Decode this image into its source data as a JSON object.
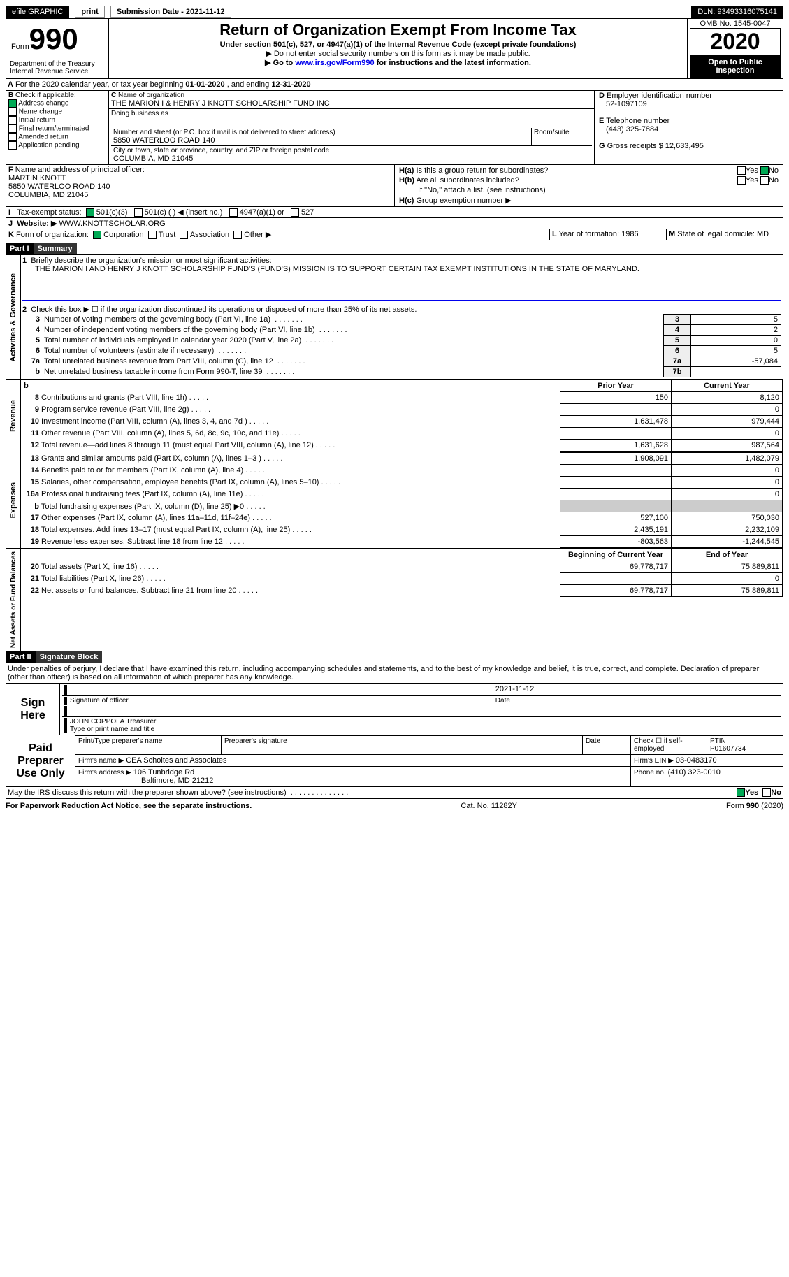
{
  "topbar": {
    "efile": "efile GRAPHIC",
    "print": "print",
    "subdate_label": "Submission Date - ",
    "subdate": "2021-11-12",
    "dln_label": "DLN: ",
    "dln": "93493316075141"
  },
  "header": {
    "form_label": "Form",
    "form_num": "990",
    "title": "Return of Organization Exempt From Income Tax",
    "subtitle": "Under section 501(c), 527, or 4947(a)(1) of the Internal Revenue Code (except private foundations)",
    "note1": "▶ Do not enter social security numbers on this form as it may be made public.",
    "note2_pre": "▶ Go to ",
    "note2_link": "www.irs.gov/Form990",
    "note2_post": " for instructions and the latest information.",
    "dept": "Department of the Treasury\nInternal Revenue Service",
    "omb_label": "OMB No. 1545-0047",
    "year": "2020",
    "open": "Open to Public Inspection"
  },
  "A": {
    "text": "For the 2020 calendar year, or tax year beginning ",
    "begin": "01-01-2020",
    "mid": " , and ending ",
    "end": "12-31-2020"
  },
  "B": {
    "label": "Check if applicable:",
    "items": [
      "Address change",
      "Name change",
      "Initial return",
      "Final return/terminated",
      "Amended return",
      "Application pending"
    ],
    "checked_idx": 0
  },
  "C": {
    "name_label": "Name of organization",
    "name": "THE MARION I & HENRY J KNOTT SCHOLARSHIP FUND INC",
    "dba_label": "Doing business as",
    "addr_label": "Number and street (or P.O. box if mail is not delivered to street address)",
    "addr": "5850 WATERLOO ROAD 140",
    "room_label": "Room/suite",
    "city_label": "City or town, state or province, country, and ZIP or foreign postal code",
    "city": "COLUMBIA, MD  21045"
  },
  "D": {
    "label": "Employer identification number",
    "val": "52-1097109"
  },
  "E": {
    "label": "Telephone number",
    "val": "(443) 325-7884"
  },
  "G": {
    "label": "Gross receipts $",
    "val": "12,633,495"
  },
  "F": {
    "label": "Name and address of principal officer:",
    "name": "MARTIN KNOTT",
    "addr1": "5850 WATERLOO ROAD 140",
    "addr2": "COLUMBIA, MD  21045"
  },
  "H": {
    "a_label": "Is this a group return for subordinates?",
    "a_yes": "Yes",
    "a_no": "No",
    "b_label": "Are all subordinates included?",
    "b_note": "If \"No,\" attach a list. (see instructions)",
    "c_label": "Group exemption number ▶"
  },
  "I": {
    "label": "Tax-exempt status:",
    "opts": [
      "501(c)(3)",
      "501(c) (   ) ◀ (insert no.)",
      "4947(a)(1) or",
      "527"
    ]
  },
  "J": {
    "label": "Website: ▶",
    "val": "WWW.KNOTTSCHOLAR.ORG"
  },
  "K": {
    "label": "Form of organization:",
    "opts": [
      "Corporation",
      "Trust",
      "Association",
      "Other ▶"
    ]
  },
  "L": {
    "label": "Year of formation:",
    "val": "1986"
  },
  "M": {
    "label": "State of legal domicile:",
    "val": "MD"
  },
  "part1": {
    "header": "Part I",
    "title": "Summary",
    "side_gov": "Activities & Governance",
    "side_rev": "Revenue",
    "side_exp": "Expenses",
    "side_net": "Net Assets or Fund Balances",
    "l1_label": "Briefly describe the organization's mission or most significant activities:",
    "l1_text": "THE MARION I AND HENRY J KNOTT SCHOLARSHIP FUND'S (FUND'S) MISSION IS TO SUPPORT CERTAIN TAX EXEMPT INSTITUTIONS IN THE STATE OF MARYLAND.",
    "l2": "Check this box ▶ ☐ if the organization discontinued its operations or disposed of more than 25% of its net assets.",
    "rows_gov": [
      {
        "n": "3",
        "t": "Number of voting members of the governing body (Part VI, line 1a)",
        "box": "3",
        "v": "5"
      },
      {
        "n": "4",
        "t": "Number of independent voting members of the governing body (Part VI, line 1b)",
        "box": "4",
        "v": "2"
      },
      {
        "n": "5",
        "t": "Total number of individuals employed in calendar year 2020 (Part V, line 2a)",
        "box": "5",
        "v": "0"
      },
      {
        "n": "6",
        "t": "Total number of volunteers (estimate if necessary)",
        "box": "6",
        "v": "5"
      },
      {
        "n": "7a",
        "t": "Total unrelated business revenue from Part VIII, column (C), line 12",
        "box": "7a",
        "v": "-57,084"
      },
      {
        "n": "b",
        "t": "Net unrelated business taxable income from Form 990-T, line 39",
        "box": "7b",
        "v": ""
      }
    ],
    "col_prior": "Prior Year",
    "col_curr": "Current Year",
    "rows_rev": [
      {
        "n": "8",
        "t": "Contributions and grants (Part VIII, line 1h)",
        "p": "150",
        "c": "8,120"
      },
      {
        "n": "9",
        "t": "Program service revenue (Part VIII, line 2g)",
        "p": "",
        "c": "0"
      },
      {
        "n": "10",
        "t": "Investment income (Part VIII, column (A), lines 3, 4, and 7d )",
        "p": "1,631,478",
        "c": "979,444"
      },
      {
        "n": "11",
        "t": "Other revenue (Part VIII, column (A), lines 5, 6d, 8c, 9c, 10c, and 11e)",
        "p": "",
        "c": "0"
      },
      {
        "n": "12",
        "t": "Total revenue—add lines 8 through 11 (must equal Part VIII, column (A), line 12)",
        "p": "1,631,628",
        "c": "987,564"
      }
    ],
    "rows_exp": [
      {
        "n": "13",
        "t": "Grants and similar amounts paid (Part IX, column (A), lines 1–3 )",
        "p": "1,908,091",
        "c": "1,482,079"
      },
      {
        "n": "14",
        "t": "Benefits paid to or for members (Part IX, column (A), line 4)",
        "p": "",
        "c": "0"
      },
      {
        "n": "15",
        "t": "Salaries, other compensation, employee benefits (Part IX, column (A), lines 5–10)",
        "p": "",
        "c": "0"
      },
      {
        "n": "16a",
        "t": "Professional fundraising fees (Part IX, column (A), line 11e)",
        "p": "",
        "c": "0"
      },
      {
        "n": "b",
        "t": "Total fundraising expenses (Part IX, column (D), line 25) ▶0",
        "p": "GREY",
        "c": "GREY"
      },
      {
        "n": "17",
        "t": "Other expenses (Part IX, column (A), lines 11a–11d, 11f–24e)",
        "p": "527,100",
        "c": "750,030"
      },
      {
        "n": "18",
        "t": "Total expenses. Add lines 13–17 (must equal Part IX, column (A), line 25)",
        "p": "2,435,191",
        "c": "2,232,109"
      },
      {
        "n": "19",
        "t": "Revenue less expenses. Subtract line 18 from line 12",
        "p": "-803,563",
        "c": "-1,244,545"
      }
    ],
    "col_begin": "Beginning of Current Year",
    "col_end": "End of Year",
    "rows_net": [
      {
        "n": "20",
        "t": "Total assets (Part X, line 16)",
        "p": "69,778,717",
        "c": "75,889,811"
      },
      {
        "n": "21",
        "t": "Total liabilities (Part X, line 26)",
        "p": "",
        "c": "0"
      },
      {
        "n": "22",
        "t": "Net assets or fund balances. Subtract line 21 from line 20",
        "p": "69,778,717",
        "c": "75,889,811"
      }
    ]
  },
  "part2": {
    "header": "Part II",
    "title": "Signature Block",
    "decl": "Under penalties of perjury, I declare that I have examined this return, including accompanying schedules and statements, and to the best of my knowledge and belief, it is true, correct, and complete. Declaration of preparer (other than officer) is based on all information of which preparer has any knowledge.",
    "sign_here": "Sign Here",
    "sig_officer": "Signature of officer",
    "sig_date": "Date",
    "sig_date_val": "2021-11-12",
    "sig_name": "JOHN COPPOLA  Treasurer",
    "sig_type": "Type or print name and title",
    "paid": "Paid Preparer Use Only",
    "prep_name_label": "Print/Type preparer's name",
    "prep_sig_label": "Preparer's signature",
    "date_label": "Date",
    "check_label": "Check ☐ if self-employed",
    "ptin_label": "PTIN",
    "ptin": "P01607734",
    "firm_name_label": "Firm's name    ▶",
    "firm_name": "CEA Scholtes and Associates",
    "firm_ein_label": "Firm's EIN ▶",
    "firm_ein": "03-0483170",
    "firm_addr_label": "Firm's address ▶",
    "firm_addr1": "106 Tunbridge Rd",
    "firm_addr2": "Baltimore, MD  21212",
    "phone_label": "Phone no.",
    "phone": "(410) 323-0010",
    "discuss": "May the IRS discuss this return with the preparer shown above? (see instructions)",
    "yes": "Yes",
    "no": "No"
  },
  "footer": {
    "l": "For Paperwork Reduction Act Notice, see the separate instructions.",
    "m": "Cat. No. 11282Y",
    "r": "Form 990 (2020)"
  }
}
